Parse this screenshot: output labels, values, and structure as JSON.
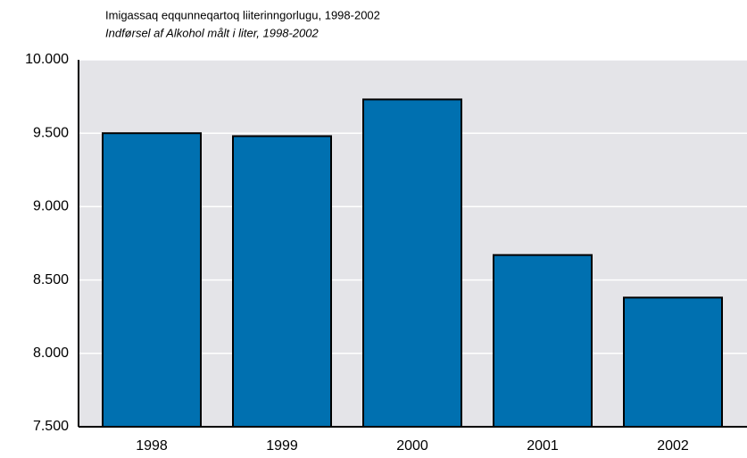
{
  "chart_data": {
    "type": "bar",
    "title": "Imigassaq eqqunneqartoq liiterinngorlugu, 1998-2002",
    "subtitle": "Indførsel af Alkohol målt i liter, 1998-2002",
    "categories": [
      "1998",
      "1999",
      "2000",
      "2001",
      "2002"
    ],
    "values": [
      9500,
      9480,
      9730,
      8670,
      8380
    ],
    "color": "#0070b0",
    "ylim": [
      7500,
      10000
    ],
    "yticks": [
      {
        "value": 7500,
        "label": "7.500"
      },
      {
        "value": 8000,
        "label": "8.000"
      },
      {
        "value": 8500,
        "label": "8.500"
      },
      {
        "value": 9000,
        "label": "9.000"
      },
      {
        "value": 9500,
        "label": "9.500"
      },
      {
        "value": 10000,
        "label": "10.000"
      }
    ],
    "grid": true
  }
}
